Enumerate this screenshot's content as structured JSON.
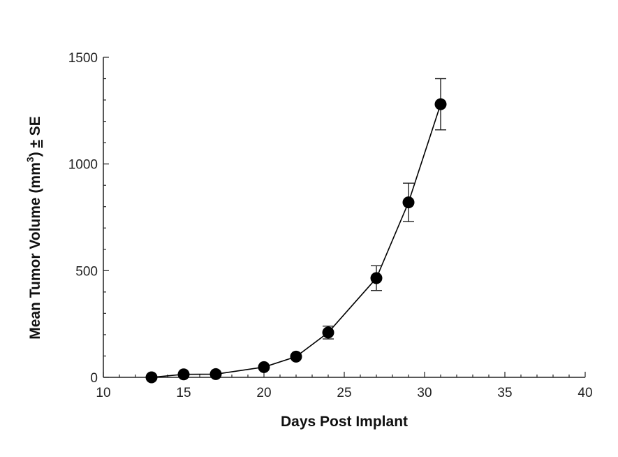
{
  "chart_data": {
    "type": "scatter",
    "xlabel": "Days Post Implant",
    "ylabel": "Mean Tumor Volume (mm) ± SE",
    "ylabel_parts": {
      "pre": "Mean Tumor Volume (mm",
      "sup": "3",
      "post": ") ",
      "pm": "±",
      "tail": " SE"
    },
    "xlim": [
      10,
      40
    ],
    "ylim": [
      0,
      1500
    ],
    "x_ticks": [
      10,
      15,
      20,
      25,
      30,
      35,
      40
    ],
    "y_ticks": [
      0,
      500,
      1000,
      1500
    ],
    "x_minor_step": 1,
    "y_minor_step": 100,
    "grid": false,
    "series": [
      {
        "x": [
          13,
          15,
          17,
          20,
          22,
          24,
          27,
          29,
          31
        ],
        "y": [
          0,
          14,
          15,
          48,
          97,
          210,
          465,
          820,
          1280
        ],
        "err": [
          0,
          0,
          0,
          0,
          0,
          30,
          58,
          90,
          120
        ],
        "line": true,
        "marker": "circle",
        "color": "#000000"
      }
    ]
  }
}
